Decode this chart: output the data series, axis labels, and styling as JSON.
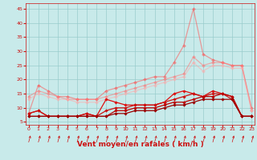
{
  "xlabel": "Vent moyen/en rafales ( km/h )",
  "background_color": "#c8eaea",
  "grid_color": "#99cccc",
  "x_ticks": [
    0,
    1,
    2,
    3,
    4,
    5,
    6,
    7,
    8,
    9,
    10,
    11,
    12,
    13,
    14,
    15,
    16,
    17,
    18,
    19,
    20,
    21,
    22,
    23
  ],
  "y_ticks": [
    5,
    10,
    15,
    20,
    25,
    30,
    35,
    40,
    45
  ],
  "xlim": [
    -0.3,
    23.3
  ],
  "ylim": [
    4.0,
    47.0
  ],
  "lines": [
    {
      "color": "#ff5555",
      "alpha": 0.55,
      "lw": 0.9,
      "marker": "D",
      "ms": 2.0,
      "y": [
        8,
        18,
        16,
        14,
        14,
        13,
        13,
        13,
        16,
        17,
        18,
        19,
        20,
        21,
        21,
        26,
        32,
        45,
        29,
        27,
        26,
        25,
        25,
        10
      ]
    },
    {
      "color": "#ff7777",
      "alpha": 0.55,
      "lw": 0.9,
      "marker": "D",
      "ms": 2.0,
      "y": [
        14,
        16,
        15,
        14,
        13,
        13,
        13,
        13,
        14,
        15,
        16,
        17,
        18,
        19,
        20,
        21,
        22,
        28,
        25,
        26,
        26,
        25,
        25,
        9
      ]
    },
    {
      "color": "#ffaaaa",
      "alpha": 0.55,
      "lw": 0.9,
      "marker": "D",
      "ms": 2.0,
      "y": [
        13,
        15,
        14,
        13,
        13,
        12,
        12,
        12,
        13,
        14,
        15,
        16,
        17,
        18,
        19,
        20,
        21,
        26,
        23,
        25,
        25,
        24,
        24,
        9
      ]
    },
    {
      "color": "#dd1111",
      "alpha": 1.0,
      "lw": 0.9,
      "marker": "D",
      "ms": 1.8,
      "y": [
        8,
        9,
        7,
        7,
        7,
        7,
        8,
        7,
        13,
        12,
        11,
        11,
        11,
        11,
        12,
        15,
        16,
        15,
        14,
        16,
        15,
        14,
        7,
        7
      ]
    },
    {
      "color": "#cc1111",
      "alpha": 1.0,
      "lw": 0.9,
      "marker": "D",
      "ms": 1.8,
      "y": [
        8,
        9,
        7,
        7,
        7,
        7,
        8,
        7,
        9,
        10,
        10,
        11,
        11,
        11,
        12,
        13,
        14,
        15,
        14,
        15,
        15,
        13,
        7,
        7
      ]
    },
    {
      "color": "#bb0000",
      "alpha": 1.0,
      "lw": 0.9,
      "marker": "D",
      "ms": 1.8,
      "y": [
        7,
        7,
        7,
        7,
        7,
        7,
        7,
        7,
        7,
        9,
        9,
        10,
        10,
        10,
        11,
        12,
        12,
        13,
        14,
        14,
        15,
        14,
        7,
        7
      ]
    },
    {
      "color": "#990000",
      "alpha": 1.0,
      "lw": 0.9,
      "marker": "D",
      "ms": 1.8,
      "y": [
        7,
        7,
        7,
        7,
        7,
        7,
        7,
        7,
        7,
        8,
        8,
        9,
        9,
        9,
        10,
        11,
        11,
        12,
        13,
        13,
        13,
        13,
        7,
        7
      ]
    }
  ],
  "arrow_color": "#cc1111",
  "xlabel_color": "#cc1111",
  "tick_color": "#cc1111",
  "xlabel_fontsize": 6.5,
  "tick_fontsize": 4.5
}
